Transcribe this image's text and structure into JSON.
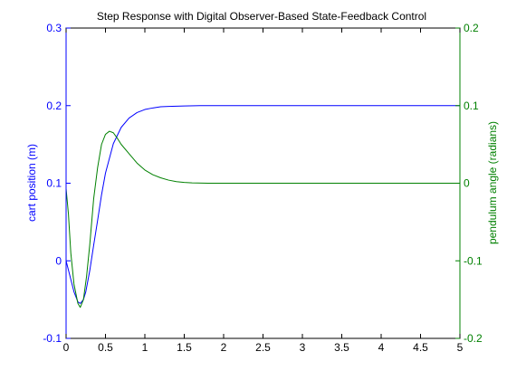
{
  "chart_data": {
    "type": "line",
    "title": "Step Response with Digital Observer-Based State-Feedback Control",
    "xlabel": "",
    "xlim": [
      0,
      5
    ],
    "x_ticks": [
      0,
      0.5,
      1,
      1.5,
      2,
      2.5,
      3,
      3.5,
      4,
      4.5,
      5
    ],
    "x_tick_labels": [
      "0",
      "0.5",
      "1",
      "1.5",
      "2",
      "2.5",
      "3",
      "3.5",
      "4",
      "4.5",
      "5"
    ],
    "y_left": {
      "label": "cart position (m)",
      "lim": [
        -0.1,
        0.3
      ],
      "ticks": [
        -0.1,
        0,
        0.1,
        0.2,
        0.3
      ],
      "tick_labels": [
        "-0.1",
        "0",
        "0.1",
        "0.2",
        "0.3"
      ],
      "color": "#0000ff"
    },
    "y_right": {
      "label": "pendulum angle (radians)",
      "lim": [
        -0.2,
        0.2
      ],
      "ticks": [
        -0.2,
        -0.1,
        0,
        0.1,
        0.2
      ],
      "tick_labels": [
        "-0.2",
        "-0.1",
        "0",
        "0.1",
        "0.2"
      ],
      "color": "#008000"
    },
    "grid": false,
    "series": [
      {
        "axis": "left",
        "color": "#0000ff",
        "x": [
          0,
          0.05,
          0.1,
          0.15,
          0.18,
          0.22,
          0.25,
          0.3,
          0.35,
          0.4,
          0.45,
          0.5,
          0.6,
          0.7,
          0.8,
          0.9,
          1.0,
          1.1,
          1.2,
          1.3,
          1.5,
          1.7,
          2,
          2.5,
          3,
          3.5,
          4,
          4.5,
          5
        ],
        "y": [
          0,
          -0.02,
          -0.04,
          -0.053,
          -0.055,
          -0.05,
          -0.04,
          -0.013,
          0.02,
          0.052,
          0.085,
          0.113,
          0.151,
          0.172,
          0.184,
          0.191,
          0.195,
          0.197,
          0.1985,
          0.199,
          0.1995,
          0.2,
          0.2,
          0.2,
          0.2,
          0.2,
          0.2,
          0.2,
          0.2
        ]
      },
      {
        "axis": "right",
        "color": "#008000",
        "x": [
          0,
          0.03,
          0.06,
          0.1,
          0.15,
          0.18,
          0.22,
          0.26,
          0.3,
          0.35,
          0.4,
          0.45,
          0.5,
          0.55,
          0.6,
          0.65,
          0.7,
          0.8,
          0.9,
          1.0,
          1.1,
          1.2,
          1.3,
          1.4,
          1.5,
          1.6,
          1.8,
          2,
          2.5,
          3,
          3.5,
          4,
          4.5,
          5
        ],
        "y": [
          -0.007,
          -0.04,
          -0.09,
          -0.13,
          -0.155,
          -0.16,
          -0.15,
          -0.12,
          -0.08,
          -0.02,
          0.02,
          0.05,
          0.063,
          0.067,
          0.065,
          0.058,
          0.05,
          0.038,
          0.026,
          0.017,
          0.011,
          0.007,
          0.004,
          0.002,
          0.001,
          0.0005,
          0,
          0,
          0,
          0,
          0,
          0,
          0,
          0
        ]
      }
    ]
  }
}
